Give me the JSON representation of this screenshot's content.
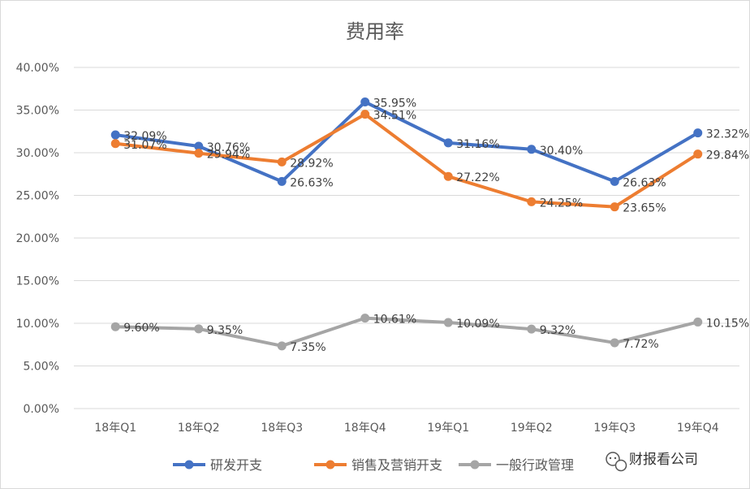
{
  "chart_data": {
    "type": "line",
    "title": "费用率",
    "xlabel": "",
    "ylabel": "",
    "categories": [
      "18年Q1",
      "18年Q2",
      "18年Q3",
      "18年Q4",
      "19年Q1",
      "19年Q2",
      "19年Q3",
      "19年Q4"
    ],
    "ylim": [
      0,
      40
    ],
    "yticks": [
      "0.00%",
      "5.00%",
      "10.00%",
      "15.00%",
      "20.00%",
      "25.00%",
      "30.00%",
      "35.00%",
      "40.00%"
    ],
    "grid": true,
    "legend_position": "bottom",
    "series": [
      {
        "name": "研发开支",
        "color": "#4472c4",
        "values": [
          32.09,
          30.76,
          26.63,
          35.95,
          31.16,
          30.4,
          26.63,
          32.32
        ],
        "labels": [
          "32.09%",
          "30.76%",
          "26.63%",
          "35.95%",
          "31.16%",
          "30.40%",
          "26.63%",
          "32.32%"
        ]
      },
      {
        "name": "销售及营销开支",
        "color": "#ed7d31",
        "values": [
          31.07,
          29.94,
          28.92,
          34.51,
          27.22,
          24.25,
          23.65,
          29.84
        ],
        "labels": [
          "31.07%",
          "29.94%",
          "28.92%",
          "34.51%",
          "27.22%",
          "24.25%",
          "23.65%",
          "29.84%"
        ]
      },
      {
        "name": "一般行政管理",
        "color": "#a5a5a5",
        "values": [
          9.6,
          9.35,
          7.35,
          10.61,
          10.09,
          9.32,
          7.72,
          10.15
        ],
        "labels": [
          "9.60%",
          "9.35%",
          "7.35%",
          "10.61%",
          "10.09%",
          "9.32%",
          "7.72%",
          "10.15%"
        ]
      }
    ]
  },
  "watermark": {
    "text": "财报看公司",
    "icon": "wechat-icon"
  }
}
